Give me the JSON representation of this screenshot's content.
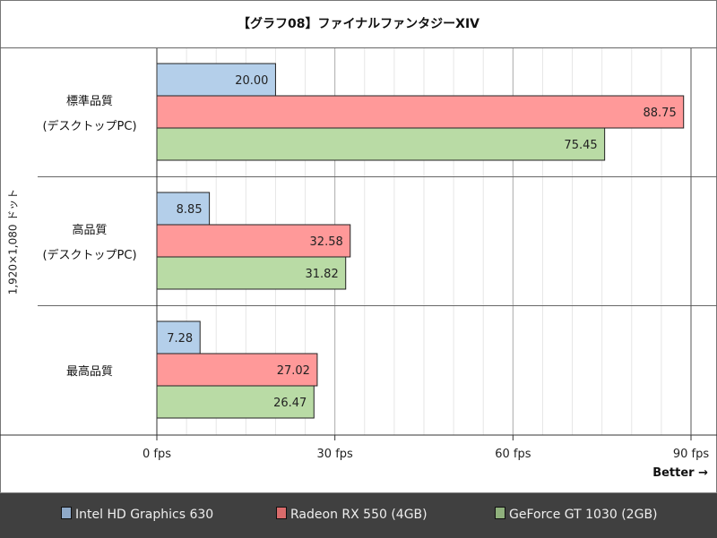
{
  "chart_data": {
    "type": "bar",
    "orientation": "horizontal",
    "title": "【グラフ08】ファイナルファンタジーXIV",
    "ylabel": "1,920×1,080 ドット",
    "annotation": "Better →",
    "categories": [
      [
        "標準品質",
        "(デスクトップPC)"
      ],
      [
        "高品質",
        "(デスクトップPC)"
      ],
      [
        "最高品質"
      ]
    ],
    "series": [
      {
        "name": "Intel HD Graphics 630",
        "color": "#b4cfea",
        "legend_color": "#8ea9c8",
        "values": [
          20.0,
          8.85,
          7.28
        ]
      },
      {
        "name": "Radeon RX 550 (4GB)",
        "color": "#ff9999",
        "legend_color": "#d96b6b",
        "values": [
          88.75,
          32.58,
          27.02
        ]
      },
      {
        "name": "GeForce GT 1030 (2GB)",
        "color": "#b9dba5",
        "legend_color": "#8fb07c",
        "values": [
          75.45,
          31.82,
          26.47
        ]
      }
    ],
    "xlim": [
      0,
      90
    ],
    "xticks": [
      0,
      30,
      60,
      90
    ],
    "xtick_labels": [
      "0 fps",
      "30 fps",
      "60 fps",
      "90 fps"
    ],
    "grid": true,
    "legend_position": "bottom"
  }
}
